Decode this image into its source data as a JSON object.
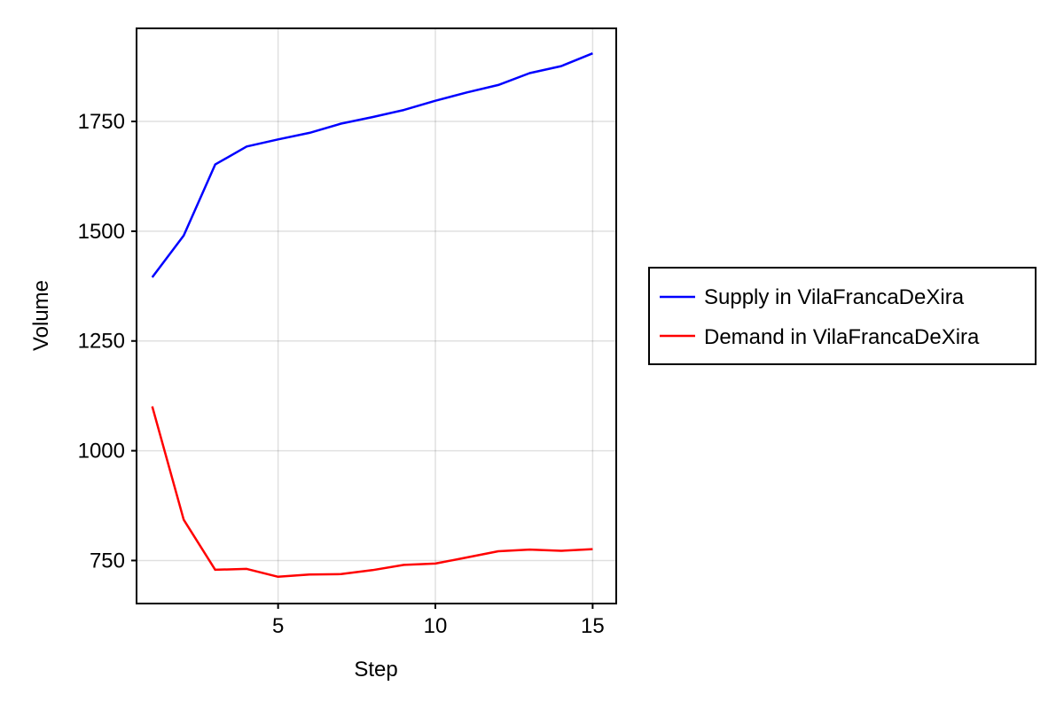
{
  "chart_data": {
    "type": "line",
    "title": "",
    "xlabel": "Step",
    "ylabel": "Volume",
    "xlim": [
      0.5,
      15.75
    ],
    "ylim": [
      652,
      1962
    ],
    "xticks": [
      5,
      10,
      15
    ],
    "yticks": [
      750,
      1000,
      1250,
      1500,
      1750
    ],
    "grid": true,
    "legend_position": "right",
    "x": [
      1,
      2,
      3,
      4,
      5,
      6,
      7,
      8,
      9,
      10,
      11,
      12,
      13,
      14,
      15
    ],
    "series": [
      {
        "name": "Supply in VilaFrancaDeXira",
        "color": "#0000ff",
        "values": [
          1395,
          1490,
          1652,
          1693,
          1709,
          1724,
          1745,
          1760,
          1776,
          1797,
          1816,
          1833,
          1860,
          1876,
          1905
        ]
      },
      {
        "name": "Demand in VilaFrancaDeXira",
        "color": "#ff0000",
        "values": [
          1101,
          843,
          729,
          731,
          713,
          718,
          719,
          728,
          740,
          743,
          757,
          771,
          775,
          772,
          776
        ]
      }
    ]
  }
}
